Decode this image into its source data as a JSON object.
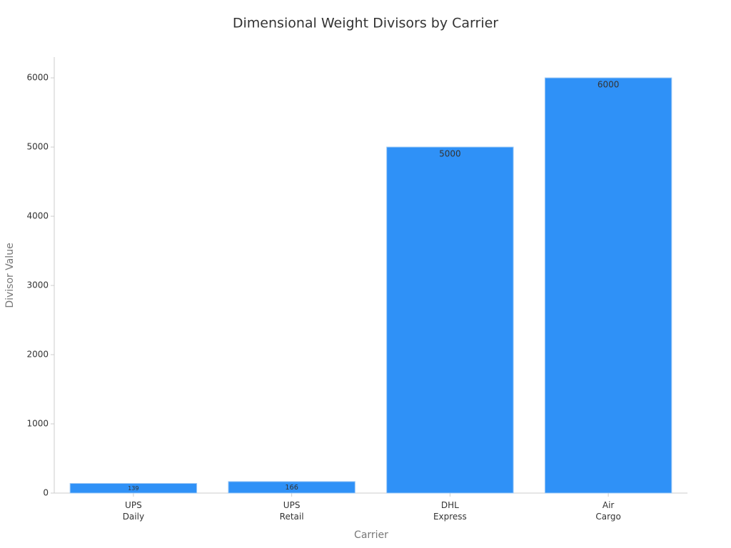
{
  "chart_data": {
    "type": "bar",
    "title": "Dimensional Weight Divisors by Carrier",
    "x_label": "Carrier",
    "y_label": "Divisor Value",
    "categories": [
      "UPS\nDaily",
      "UPS\nRetail",
      "DHL\nExpress",
      "Air\nCargo"
    ],
    "values": [
      139,
      166,
      5000,
      6000
    ],
    "color": "#2f91f7",
    "ylim": [
      0,
      6300
    ],
    "yticks": [
      0,
      1000,
      2000,
      3000,
      4000,
      5000,
      6000
    ],
    "grid": false
  }
}
